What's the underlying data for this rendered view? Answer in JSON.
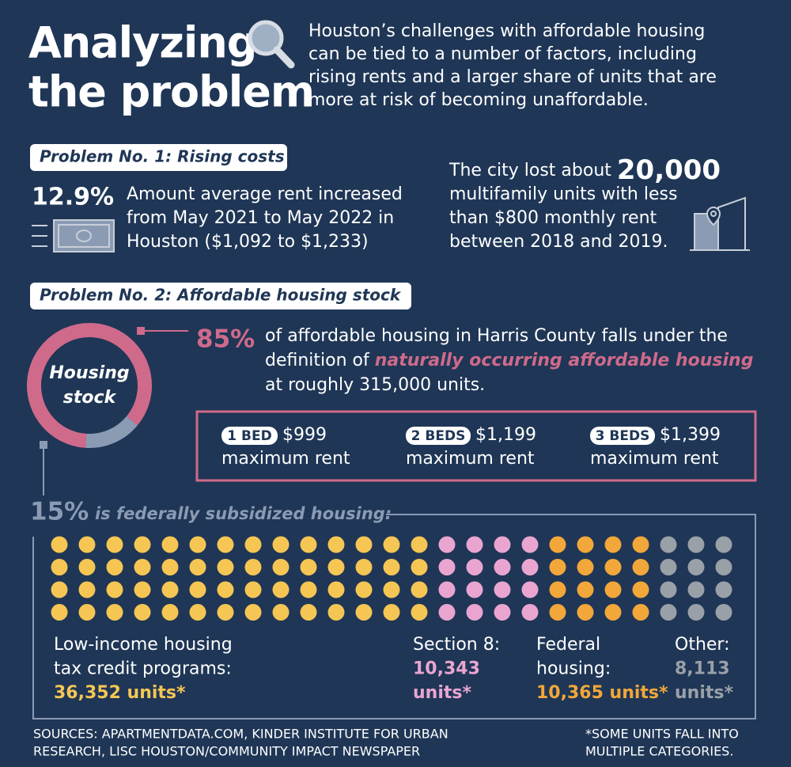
{
  "header": {
    "title_lines": [
      "Analyzing",
      "the problem"
    ],
    "intro_lines": [
      "Houston’s challenges with affordable housing",
      "can be tied to a number of factors, including",
      "rising rents and a larger share of units that are",
      "more at risk of becoming unaffordable."
    ]
  },
  "problem1": {
    "label": "Problem No. 1: Rising costs",
    "stat": "12.9%",
    "stat_lines": [
      "Amount average rent increased",
      "from May 2021 to May 2022 in",
      "Houston ($1,092 to $1,233)"
    ],
    "right_lead": "The city lost about",
    "right_number": "20,000",
    "right_lines": [
      "multifamily units with less",
      "than $800 monthly rent",
      "between 2018 and 2019."
    ]
  },
  "problem2": {
    "label": "Problem No. 2: Affordable housing stock",
    "donut": {
      "center_lines": [
        "Housing",
        "stock"
      ],
      "segments": [
        {
          "value": 85,
          "label": "85%",
          "color": "#cf6a8b"
        },
        {
          "value": 15,
          "label": "15%",
          "color": "#8b9bb4"
        }
      ]
    },
    "naoh_lines": [
      [
        "of affordable housing in Harris County falls under the"
      ],
      [
        "definition of ",
        "naturally occurring affordable housing"
      ],
      [
        "at roughly 315,000 units."
      ]
    ],
    "rents": [
      {
        "beds": "1 BED",
        "price": "$999",
        "note": "maximum rent"
      },
      {
        "beds": "2 BEDS",
        "price": "$1,199",
        "note": "maximum rent"
      },
      {
        "beds": "3 BEDS",
        "price": "$1,399",
        "note": "maximum rent"
      }
    ],
    "federal_text": "is federally subsidized housing:",
    "groups": [
      {
        "lines": [
          "Low-income housing",
          "tax credit programs:"
        ],
        "value_lines": [
          "36,352 units*"
        ],
        "dots": 56,
        "color": "#f5c654"
      },
      {
        "lines": [
          "Section 8:"
        ],
        "value_lines": [
          "10,343",
          "units*"
        ],
        "dots": 16,
        "color": "#e9a5d0"
      },
      {
        "lines": [
          "Federal",
          "housing:"
        ],
        "value_lines": [
          "10,365 units*"
        ],
        "dots": 16,
        "color": "#f2a73a"
      },
      {
        "lines": [
          "Other:"
        ],
        "value_lines": [
          "8,113",
          "units*"
        ],
        "dots": 12,
        "color": "#9aa0a8"
      }
    ]
  },
  "footer": {
    "sources": [
      "SOURCES: APARTMENTDATA.COM, KINDER INSTITUTE FOR URBAN",
      "RESEARCH, LISC HOUSTON/COMMUNITY IMPACT NEWSPAPER"
    ],
    "note": [
      "*SOME UNITS FALL INTO",
      "MULTIPLE CATEGORIES."
    ]
  }
}
